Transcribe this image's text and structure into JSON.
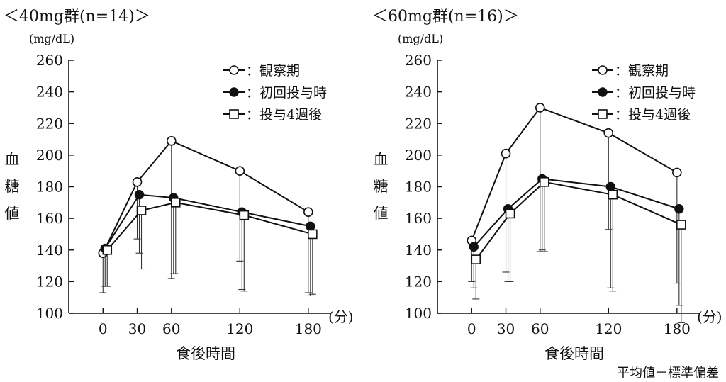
{
  "footnote": "平均値－標準偏差",
  "chart_data": [
    {
      "type": "line",
      "title": "＜40mg群(n=14)＞",
      "unit": "(mg/dL)",
      "ylabel": [
        "血",
        "糖",
        "値"
      ],
      "xlabel": "食後時間",
      "xunit": "(分)",
      "ylim": [
        100,
        260
      ],
      "yticks": [
        100,
        120,
        140,
        160,
        180,
        200,
        220,
        240,
        260
      ],
      "xticks": [
        0,
        30,
        60,
        120,
        180
      ],
      "xlim": [
        -30,
        200
      ],
      "legend_position": "top-right",
      "series": [
        {
          "name": "：観察期",
          "marker": "open-circle",
          "offset": 0,
          "x": [
            0,
            30,
            60,
            120,
            180
          ],
          "y": [
            138,
            183,
            209,
            190,
            164
          ],
          "lower": [
            113,
            147,
            122,
            133,
            113
          ]
        },
        {
          "name": "：初回投与時",
          "marker": "filled-circle",
          "offset": 3,
          "x": [
            0,
            30,
            60,
            120,
            180
          ],
          "y": [
            141,
            175,
            173,
            164,
            155
          ],
          "lower": [
            117,
            138,
            125,
            115,
            111
          ]
        },
        {
          "name": "：投与4週後",
          "marker": "open-square",
          "offset": 6,
          "x": [
            0,
            30,
            60,
            120,
            180
          ],
          "y": [
            140,
            165,
            170,
            162,
            150
          ],
          "lower": [
            117,
            128,
            125,
            114,
            112
          ]
        }
      ]
    },
    {
      "type": "line",
      "title": "＜60mg群(n=16)＞",
      "unit": "(mg/dL)",
      "ylabel": [
        "血",
        "糖",
        "値"
      ],
      "xlabel": "食後時間",
      "xunit": "(分)",
      "ylim": [
        100,
        260
      ],
      "yticks": [
        100,
        120,
        140,
        160,
        180,
        200,
        220,
        240,
        260
      ],
      "xticks": [
        0,
        30,
        60,
        120,
        180
      ],
      "xlim": [
        -30,
        200
      ],
      "legend_position": "top-right",
      "series": [
        {
          "name": "：観察期",
          "marker": "open-circle",
          "offset": 0,
          "x": [
            0,
            30,
            60,
            120,
            180
          ],
          "y": [
            146,
            201,
            230,
            214,
            189
          ],
          "lower": [
            120,
            126,
            139,
            153,
            119
          ]
        },
        {
          "name": "：初回投与時",
          "marker": "filled-circle",
          "offset": 3,
          "x": [
            0,
            30,
            60,
            120,
            180
          ],
          "y": [
            142,
            166,
            185,
            180,
            166
          ],
          "lower": [
            116,
            120,
            140,
            116,
            105
          ]
        },
        {
          "name": "：投与4週後",
          "marker": "open-square",
          "offset": 6,
          "x": [
            0,
            30,
            60,
            120,
            180
          ],
          "y": [
            134,
            163,
            183,
            175,
            156
          ],
          "lower": [
            109,
            120,
            139,
            114,
            94
          ]
        }
      ]
    }
  ]
}
